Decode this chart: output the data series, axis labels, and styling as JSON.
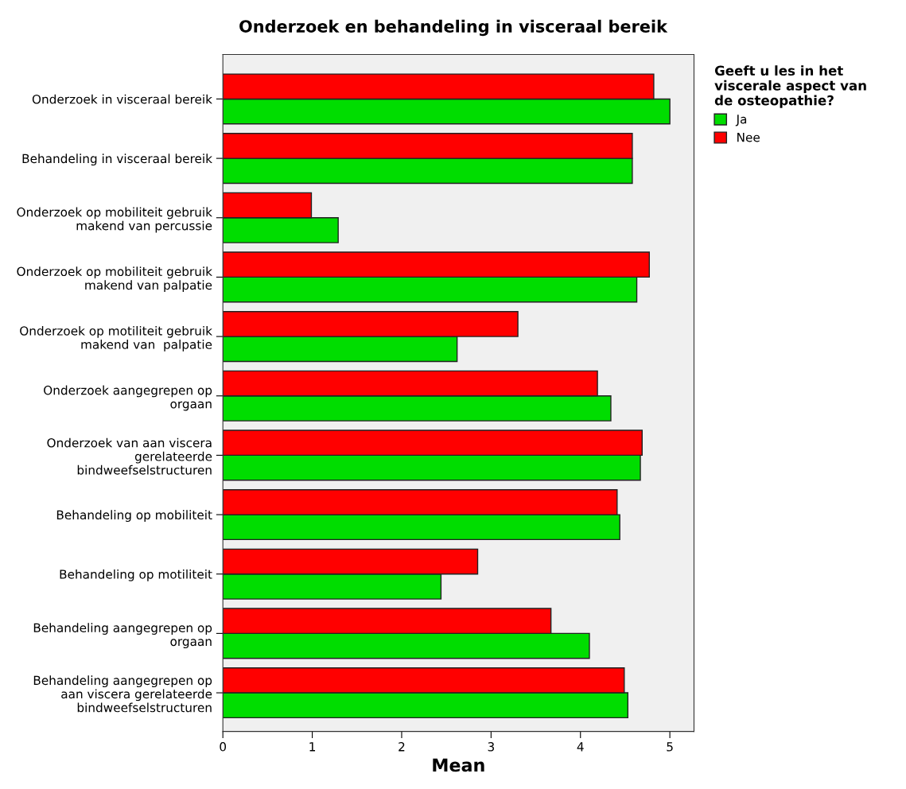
{
  "chart_data": {
    "type": "bar",
    "orientation": "horizontal",
    "title": "Onderzoek en behandeling in visceraal bereik",
    "xlabel": "Mean",
    "legend_title": "Geeft u les in het\nviscerale aspect van\nde osteopathie?",
    "categories": [
      "Onderzoek in visceraal bereik",
      "Behandeling in visceraal bereik",
      "Onderzoek op mobiliteit gebruik\nmakend van percussie",
      "Onderzoek op mobiliteit gebruik\nmakend van palpatie",
      "Onderzoek op motiliteit gebruik\nmakend van  palpatie",
      "Onderzoek aangegrepen op\norgaan",
      "Onderzoek van aan viscera\ngerelateerde\nbindweefselstructuren",
      "Behandeling op mobiliteit",
      "Behandeling op motiliteit",
      "Behandeling aangegrepen op\norgaan",
      "Behandeling aangegrepen op\naan viscera gerelateerde\nbindweefselstructuren"
    ],
    "series": [
      {
        "name": "Ja",
        "color": "#00dd00",
        "values": [
          5.0,
          4.58,
          1.29,
          4.63,
          2.62,
          4.34,
          4.67,
          4.44,
          2.44,
          4.1,
          4.53
        ]
      },
      {
        "name": "Nee",
        "color": "#ff0000",
        "values": [
          4.82,
          4.58,
          0.99,
          4.77,
          3.3,
          4.19,
          4.69,
          4.41,
          2.85,
          3.67,
          4.49
        ]
      }
    ],
    "xlim": [
      0,
      5.27
    ],
    "xticks": [
      0,
      1,
      2,
      3,
      4,
      5
    ],
    "grid": false,
    "legend": "top right"
  }
}
